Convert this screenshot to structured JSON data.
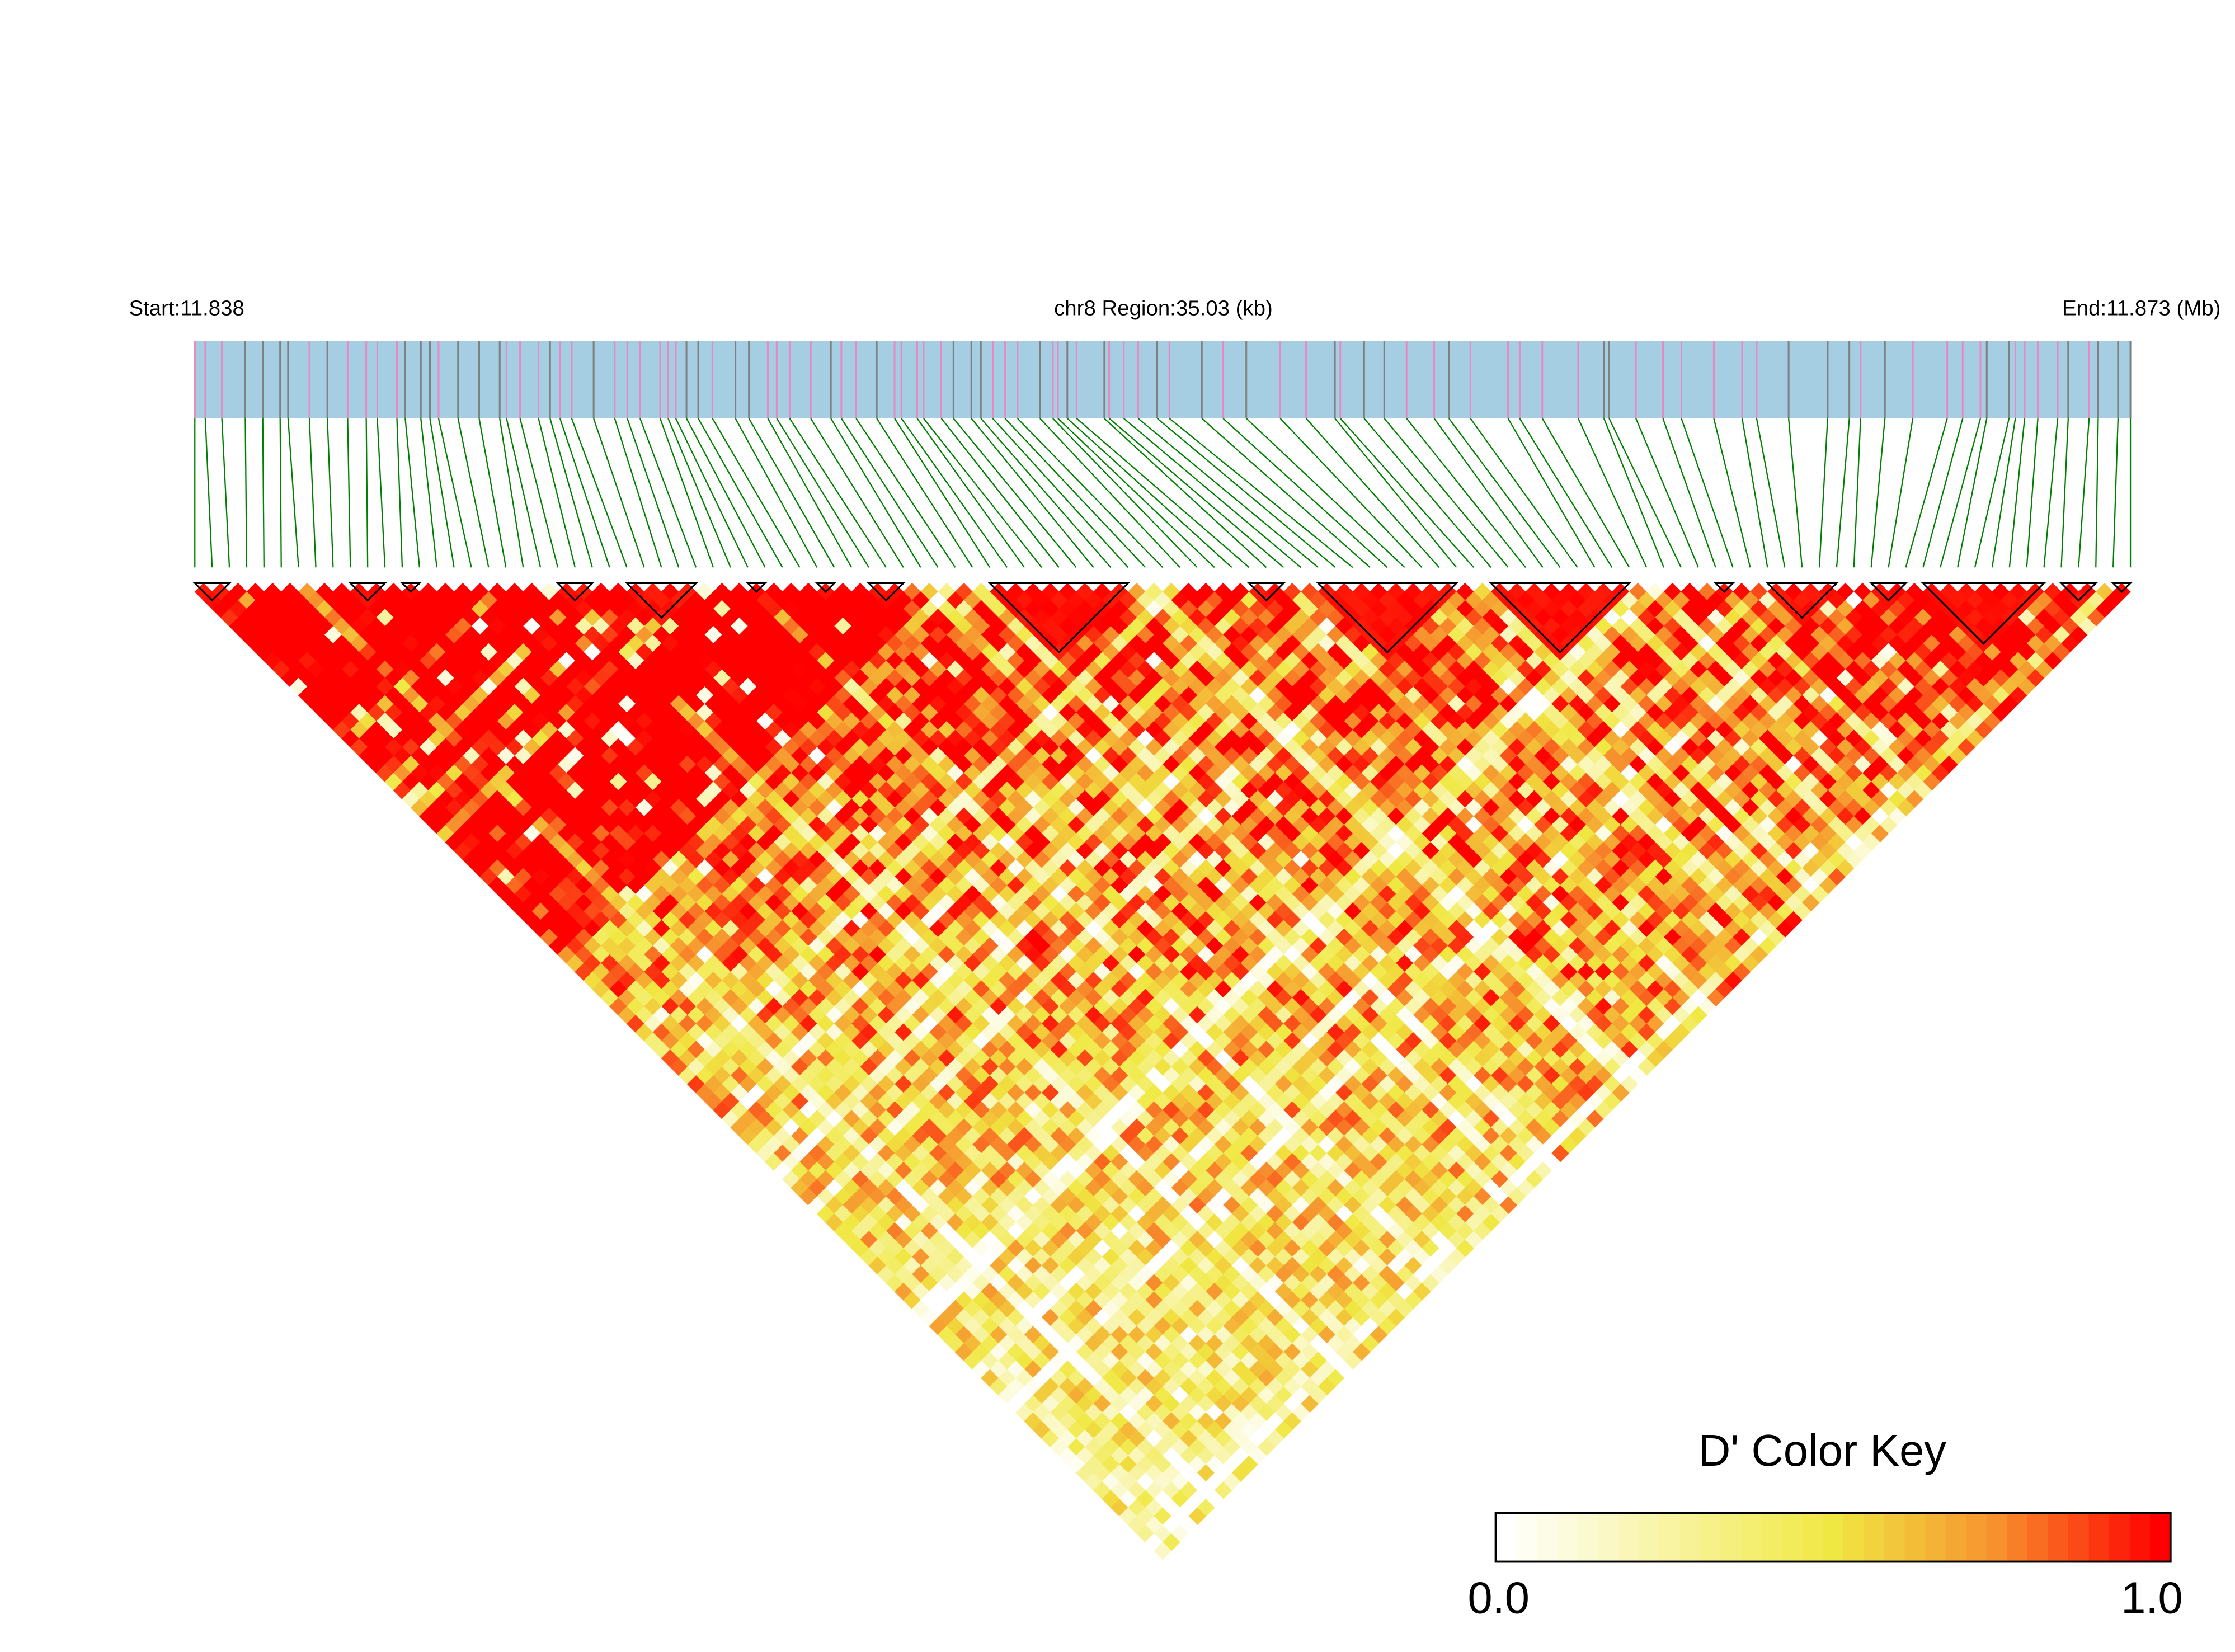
{
  "chart_data": {
    "type": "heatmap",
    "subtype": "LD triangle (D')",
    "header": {
      "start_label": "Start:11.838",
      "region_label": "chr8 Region:35.03 (kb)",
      "end_label": "End:11.873 (Mb)"
    },
    "chromosome": "chr8",
    "region_start_mb": 11.838,
    "region_end_mb": 11.873,
    "region_size_kb": 35.03,
    "snp_count": 113,
    "ld_blocks": [
      [
        0,
        2
      ],
      [
        9,
        11
      ],
      [
        12,
        13
      ],
      [
        21,
        23
      ],
      [
        25,
        29
      ],
      [
        32,
        33
      ],
      [
        36,
        37
      ],
      [
        39,
        41
      ],
      [
        46,
        54
      ],
      [
        61,
        63
      ],
      [
        65,
        73
      ],
      [
        75,
        83
      ],
      [
        88,
        89
      ],
      [
        91,
        95
      ],
      [
        97,
        99
      ],
      [
        100,
        107
      ],
      [
        108,
        110
      ],
      [
        111,
        112
      ]
    ],
    "colorbar": {
      "title": "D' Color Key",
      "min_label": "0.0",
      "max_label": "1.0",
      "range": [
        0,
        1
      ],
      "stops": [
        "#ffffff",
        "#f0e842",
        "#f7912e",
        "#ff0000"
      ]
    },
    "colors": {
      "gene_bar": "#a6cee3",
      "snp_mark_pink": "#e78ac3",
      "snp_mark_gray": "#808080",
      "connector": "#008000",
      "block_outline": "#000000"
    },
    "value_note": "D' values per SNP pair shown as colors; high (red) near diagonal and within blocks, mixed yellow/white at long range"
  }
}
